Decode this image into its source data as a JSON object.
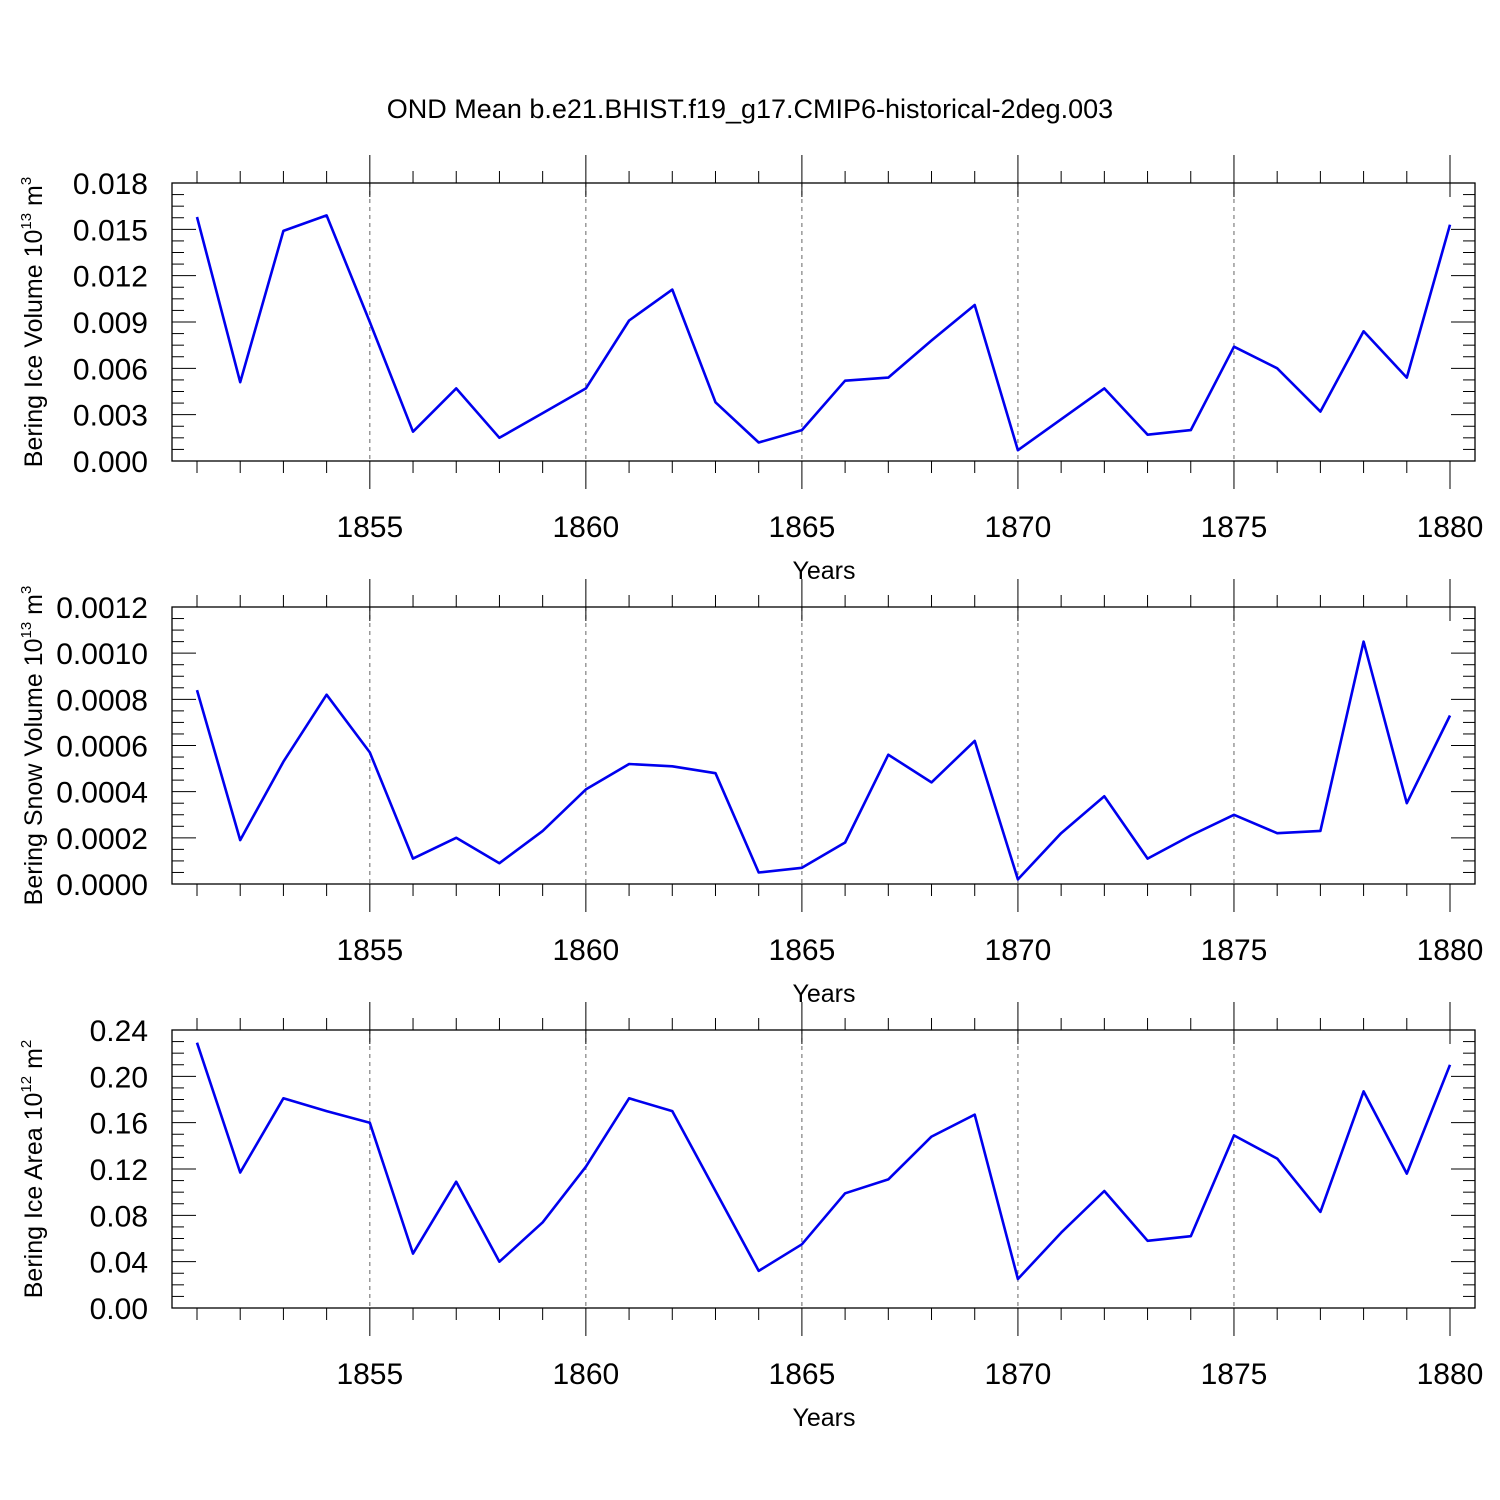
{
  "title": "OND Mean b.e21.BHIST.f19_g17.CMIP6-historical-2deg.003",
  "colors": {
    "series": "#0000ee",
    "grid": "#666666"
  },
  "chart_data": [
    {
      "type": "line",
      "ylabel": "Bering Ice Volume 10",
      "ylabel_sup": "13",
      "ylabel_unit": " m",
      "ylabel_unit_sup": "3",
      "xlabel": "Years",
      "xlim": [
        1851,
        1880
      ],
      "ylim": [
        0,
        0.018
      ],
      "xticks": [
        1855,
        1860,
        1865,
        1870,
        1875,
        1880
      ],
      "yticks": [
        "0.000",
        "0.003",
        "0.006",
        "0.009",
        "0.012",
        "0.015",
        "0.018"
      ],
      "ytick_values": [
        0,
        0.003,
        0.006,
        0.009,
        0.012,
        0.015,
        0.018
      ],
      "grid": "vertical dashed at major x ticks",
      "x": [
        1851,
        1852,
        1853,
        1854,
        1855,
        1856,
        1857,
        1858,
        1859,
        1860,
        1861,
        1862,
        1863,
        1864,
        1865,
        1866,
        1867,
        1868,
        1869,
        1870,
        1871,
        1872,
        1873,
        1874,
        1875,
        1876,
        1877,
        1878,
        1879,
        1880
      ],
      "values": [
        0.0158,
        0.0051,
        0.0149,
        0.0159,
        0.009,
        0.0019,
        0.0047,
        0.0015,
        0.0031,
        0.0047,
        0.0091,
        0.0111,
        0.0038,
        0.0012,
        0.002,
        0.0052,
        0.0054,
        0.0078,
        0.0101,
        0.0007,
        0.0027,
        0.0047,
        0.0017,
        0.002,
        0.0074,
        0.006,
        0.0032,
        0.0084,
        0.0054,
        0.0153
      ]
    },
    {
      "type": "line",
      "ylabel": "Bering Snow Volume 10",
      "ylabel_sup": "13",
      "ylabel_unit": " m",
      "ylabel_unit_sup": "3",
      "xlabel": "Years",
      "xlim": [
        1851,
        1880
      ],
      "ylim": [
        0,
        0.0012
      ],
      "xticks": [
        1855,
        1860,
        1865,
        1870,
        1875,
        1880
      ],
      "yticks": [
        "0.0000",
        "0.0002",
        "0.0004",
        "0.0006",
        "0.0008",
        "0.0010",
        "0.0012"
      ],
      "ytick_values": [
        0,
        0.0002,
        0.0004,
        0.0006,
        0.0008,
        0.001,
        0.0012
      ],
      "grid": "vertical dashed at major x ticks",
      "x": [
        1851,
        1852,
        1853,
        1854,
        1855,
        1856,
        1857,
        1858,
        1859,
        1860,
        1861,
        1862,
        1863,
        1864,
        1865,
        1866,
        1867,
        1868,
        1869,
        1870,
        1871,
        1872,
        1873,
        1874,
        1875,
        1876,
        1877,
        1878,
        1879,
        1880
      ],
      "values": [
        0.00084,
        0.00019,
        0.00053,
        0.00082,
        0.00057,
        0.00011,
        0.0002,
        9e-05,
        0.00023,
        0.00041,
        0.00052,
        0.00051,
        0.00048,
        5e-05,
        7e-05,
        0.00018,
        0.00056,
        0.00044,
        0.00062,
        2e-05,
        0.00022,
        0.00038,
        0.00011,
        0.00021,
        0.0003,
        0.00022,
        0.00023,
        0.00105,
        0.00035,
        0.00073
      ]
    },
    {
      "type": "line",
      "ylabel": "Bering Ice Area 10",
      "ylabel_sup": "12",
      "ylabel_unit": " m",
      "ylabel_unit_sup": "2",
      "xlabel": "Years",
      "xlim": [
        1851,
        1880
      ],
      "ylim": [
        0,
        0.24
      ],
      "xticks": [
        1855,
        1860,
        1865,
        1870,
        1875,
        1880
      ],
      "yticks": [
        "0.00",
        "0.04",
        "0.08",
        "0.12",
        "0.16",
        "0.20",
        "0.24"
      ],
      "ytick_values": [
        0,
        0.04,
        0.08,
        0.12,
        0.16,
        0.2,
        0.24
      ],
      "grid": "vertical dashed at major x ticks",
      "x": [
        1851,
        1852,
        1853,
        1854,
        1855,
        1856,
        1857,
        1858,
        1859,
        1860,
        1861,
        1862,
        1863,
        1864,
        1865,
        1866,
        1867,
        1868,
        1869,
        1870,
        1871,
        1872,
        1873,
        1874,
        1875,
        1876,
        1877,
        1878,
        1879,
        1880
      ],
      "values": [
        0.229,
        0.117,
        0.181,
        0.17,
        0.16,
        0.047,
        0.109,
        0.04,
        0.074,
        0.122,
        0.181,
        0.17,
        0.101,
        0.032,
        0.055,
        0.099,
        0.111,
        0.148,
        0.167,
        0.025,
        0.065,
        0.101,
        0.058,
        0.062,
        0.149,
        0.129,
        0.083,
        0.187,
        0.116,
        0.21
      ]
    }
  ]
}
